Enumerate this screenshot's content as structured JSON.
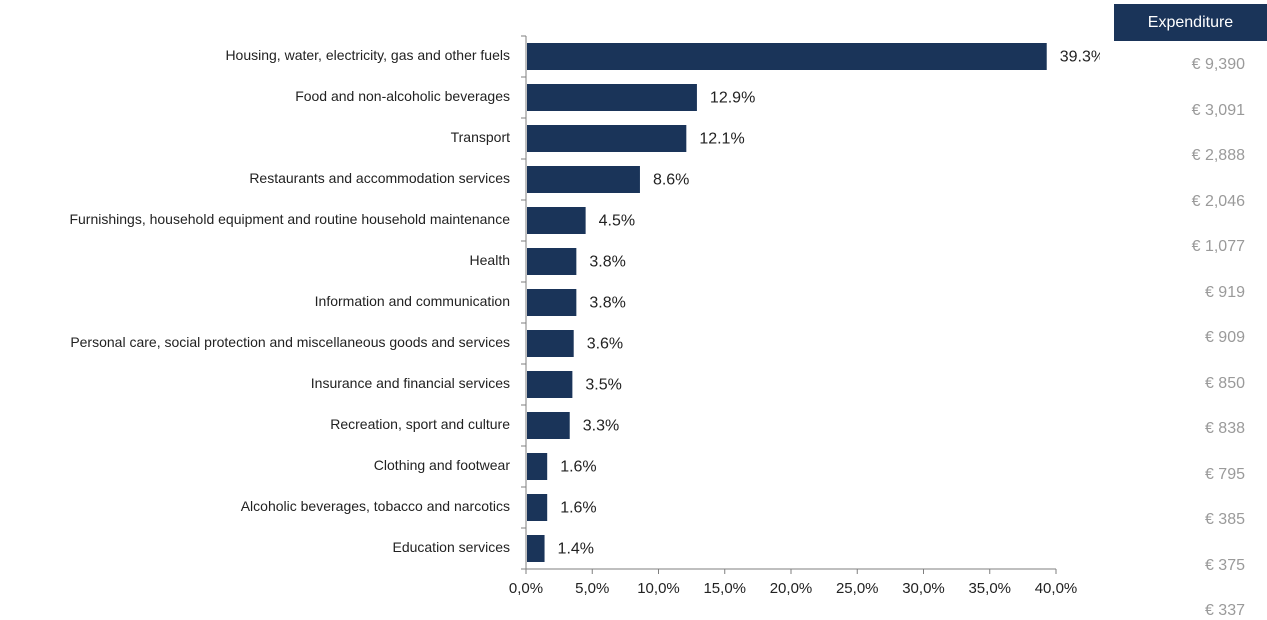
{
  "chart_data": {
    "type": "bar",
    "orientation": "horizontal",
    "categories": [
      "Housing, water, electricity, gas and other fuels",
      "Food and non-alcoholic beverages",
      "Transport",
      "Restaurants and accommodation services",
      "Furnishings, household equipment and routine household maintenance",
      "Health",
      "Information and communication",
      "Personal care, social protection and miscellaneous goods and services",
      "Insurance and financial services",
      "Recreation, sport and culture",
      "Clothing and footwear",
      "Alcoholic beverages, tobacco and narcotics",
      "Education services"
    ],
    "values": [
      39.3,
      12.9,
      12.1,
      8.6,
      4.5,
      3.8,
      3.8,
      3.6,
      3.5,
      3.3,
      1.6,
      1.6,
      1.4
    ],
    "value_labels": [
      "39.3%",
      "12.9%",
      "12.1%",
      "8.6%",
      "4.5%",
      "3.8%",
      "3.8%",
      "3.6%",
      "3.5%",
      "3.3%",
      "1.6%",
      "1.6%",
      "1.4%"
    ],
    "xlim": [
      0,
      40
    ],
    "xticks": [
      "0,0%",
      "5,0%",
      "10,0%",
      "15,0%",
      "20,0%",
      "25,0%",
      "30,0%",
      "35,0%",
      "40,0%"
    ],
    "grid": false,
    "bar_color": "#1a3459"
  },
  "expenditure": {
    "header": "Expenditure",
    "values": [
      "€ 9,390",
      "€ 3,091",
      "€ 2,888",
      "€ 2,046",
      "€ 1,077",
      "€ 919",
      "€ 909",
      "€ 850",
      "€ 838",
      "€ 795",
      "€ 385",
      "€ 375",
      "€ 337"
    ],
    "header_color": "#1a3459",
    "value_color": "#9a9a9a"
  }
}
